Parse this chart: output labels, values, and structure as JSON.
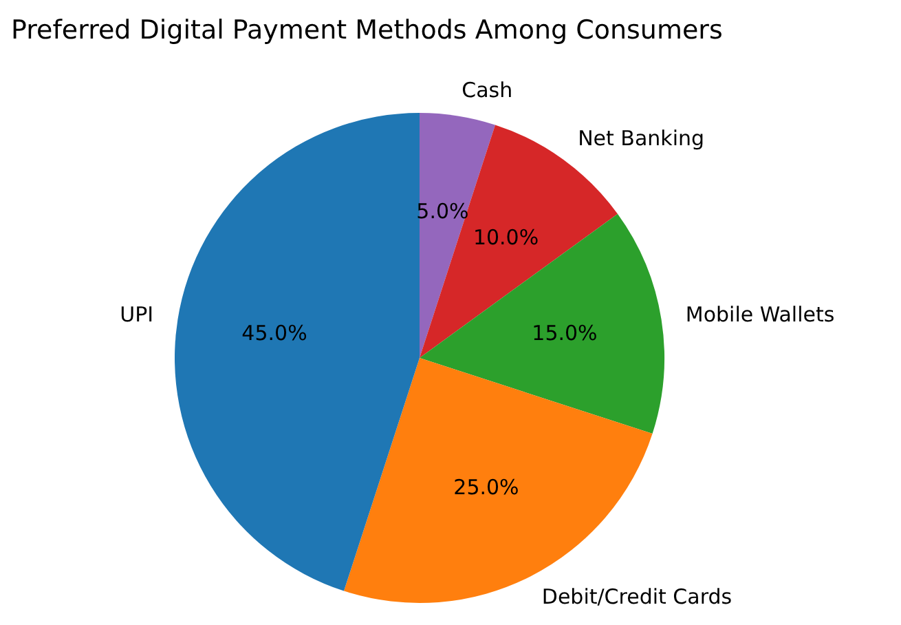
{
  "chart_data": {
    "type": "pie",
    "title": "Preferred Digital Payment Methods Among Consumers",
    "categories": [
      "UPI",
      "Debit/Credit Cards",
      "Mobile Wallets",
      "Net Banking",
      "Cash"
    ],
    "values": [
      45,
      25,
      15,
      10,
      5
    ],
    "colors": [
      "#1f77b4",
      "#ff7f0e",
      "#2ca02c",
      "#d62728",
      "#9467bd"
    ],
    "value_labels": [
      "45.0%",
      "25.0%",
      "15.0%",
      "10.0%",
      "5.0%"
    ],
    "legend": false
  }
}
